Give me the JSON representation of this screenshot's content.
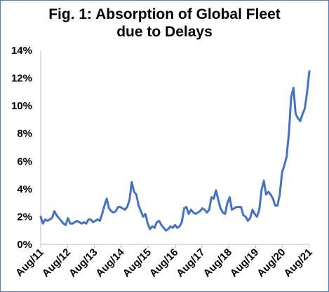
{
  "chart_data": {
    "type": "line",
    "title_lines": [
      "Fig. 1: Absorption of Global Fleet",
      "due to Delays"
    ],
    "xlabel": "",
    "ylabel": "",
    "ylim": [
      0,
      14
    ],
    "y_ticks": [
      "0%",
      "2%",
      "4%",
      "6%",
      "8%",
      "10%",
      "12%",
      "14%"
    ],
    "x_ticks": [
      "Aug/11",
      "Aug/12",
      "Aug/13",
      "Aug/14",
      "Aug/15",
      "Aug/16",
      "Aug/17",
      "Aug/18",
      "Aug/19",
      "Aug/20",
      "Aug/21"
    ],
    "grid": false,
    "legend": "none",
    "line_color": "#4472c4",
    "series": [
      {
        "values": [
          2.0,
          1.5,
          1.8,
          1.7,
          1.8,
          1.9,
          2.4,
          2.1,
          1.9,
          1.7,
          1.5,
          1.4,
          1.9,
          1.5,
          1.5,
          1.6,
          1.7,
          1.6,
          1.5,
          1.6,
          1.5,
          1.8,
          1.8,
          1.6,
          1.7,
          1.8,
          1.7,
          2.2,
          2.8,
          3.3,
          2.6,
          2.4,
          2.3,
          2.4,
          2.7,
          2.7,
          2.6,
          2.5,
          2.7,
          3.2,
          4.5,
          3.8,
          3.6,
          2.8,
          2.4,
          2.0,
          2.2,
          1.5,
          1.1,
          1.3,
          1.2,
          1.6,
          1.7,
          1.4,
          1.2,
          1.0,
          1.1,
          1.3,
          1.2,
          1.4,
          1.2,
          1.3,
          1.6,
          2.6,
          2.7,
          2.2,
          2.5,
          2.3,
          2.2,
          2.3,
          2.4,
          2.6,
          2.5,
          2.3,
          2.5,
          3.4,
          3.3,
          3.9,
          3.2,
          2.6,
          2.3,
          2.2,
          3.0,
          3.4,
          2.5,
          2.6,
          2.7,
          2.7,
          2.7,
          2.1,
          2.0,
          1.7,
          1.9,
          2.5,
          2.2,
          2.0,
          2.5,
          3.9,
          4.6,
          3.6,
          3.8,
          3.6,
          3.3,
          2.8,
          2.8,
          3.6,
          5.2,
          5.7,
          6.3,
          8.0,
          10.6,
          11.3,
          9.4,
          9.1,
          8.9,
          9.4,
          9.8,
          11.0,
          12.5
        ]
      }
    ]
  }
}
